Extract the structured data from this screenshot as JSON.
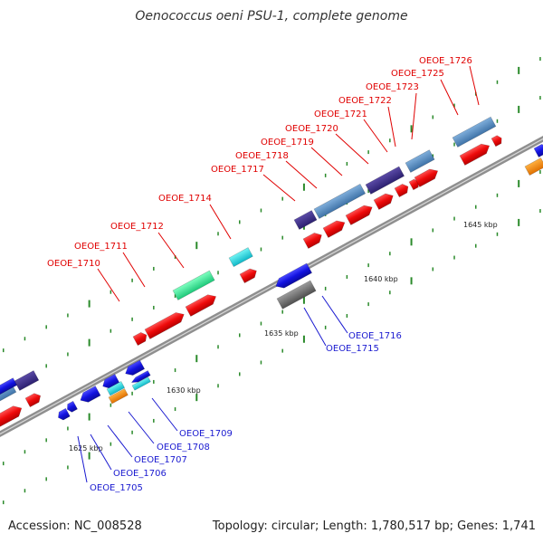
{
  "title": "Oenococcus oeni PSU-1, complete genome",
  "footer": {
    "accession": "Accession: NC_008528",
    "stats": "Topology: circular; Length: 1,780,517 bp; Genes: 1,741"
  },
  "colors": {
    "forward_label": "#e00000",
    "reverse_label": "#1a1ad0",
    "backbone": "#8a8a8a",
    "tick_mark": "#2a8a2a"
  },
  "ticks": [
    "1625 kbp",
    "1630 kbp",
    "1635 kbp",
    "1640 kbp",
    "1645 kbp"
  ],
  "forward_labels": [
    "OEOE_1710",
    "OEOE_1711",
    "OEOE_1712",
    "OEOE_1714",
    "OEOE_1717",
    "OEOE_1718",
    "OEOE_1719",
    "OEOE_1720",
    "OEOE_1721",
    "OEOE_1722",
    "OEOE_1723",
    "OEOE_1725",
    "OEOE_1726"
  ],
  "reverse_labels": [
    "OEOE_1705",
    "OEOE_1706",
    "OEOE_1707",
    "OEOE_1708",
    "OEOE_1709",
    "OEOE_1715",
    "OEOE_1716"
  ]
}
